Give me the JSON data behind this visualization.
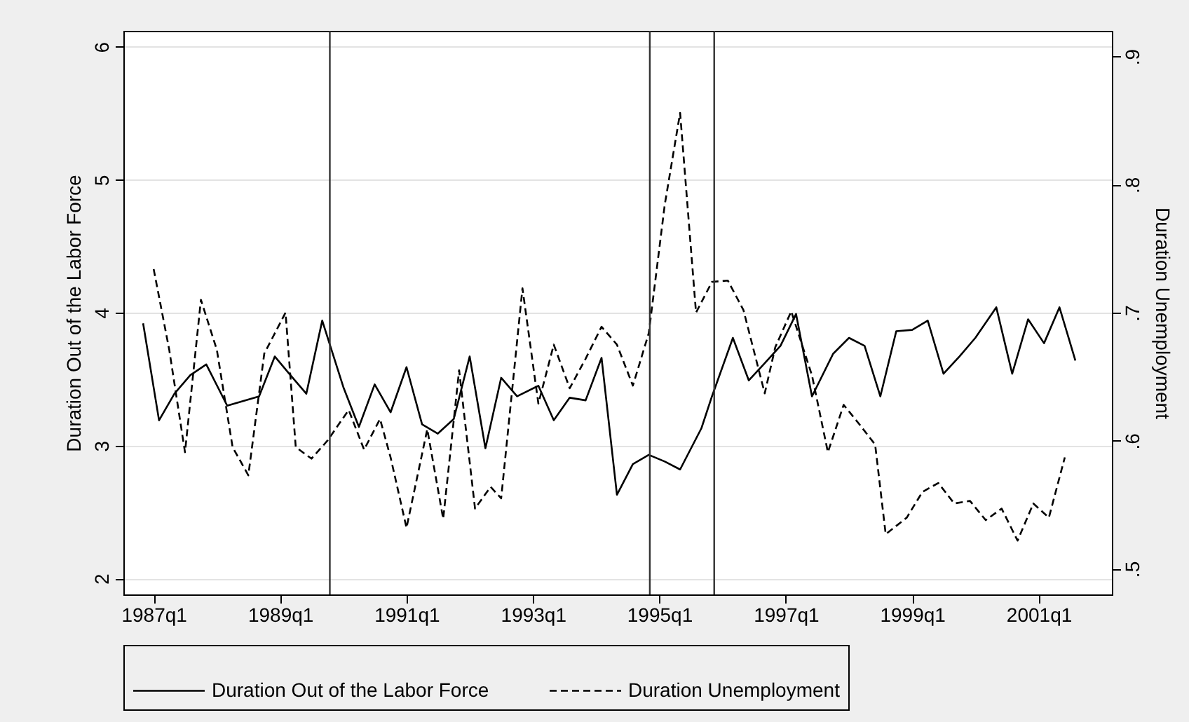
{
  "chart_data": {
    "type": "line",
    "xlabel": null,
    "ylabel": "Duration Out of the Labor Force",
    "y2label": "Duration Unemployment",
    "xlim": [
      "1986-07-10",
      "2002-02-28"
    ],
    "xticks": [
      {
        "value": "1987-01",
        "label": "1987q1"
      },
      {
        "value": "1989-01",
        "label": "1989q1"
      },
      {
        "value": "1991-01",
        "label": "1991q1"
      },
      {
        "value": "1993-01",
        "label": "1993q1"
      },
      {
        "value": "1995-01",
        "label": "1995q1"
      },
      {
        "value": "1997-01",
        "label": "1997q1"
      },
      {
        "value": "1999-01",
        "label": "1999q1"
      },
      {
        "value": "2001-01",
        "label": "2001q1"
      }
    ],
    "ylim": [
      1.88,
      6.12
    ],
    "yticks": [
      2,
      3,
      4,
      5,
      6
    ],
    "y2lim": [
      0.48,
      0.92
    ],
    "y2ticks": [
      {
        "value": 0.5,
        "label": ".5"
      },
      {
        "value": 0.6,
        "label": ".6"
      },
      {
        "value": 0.7,
        "label": ".7"
      },
      {
        "value": 0.8,
        "label": ".8"
      },
      {
        "value": 0.9,
        "label": ".9"
      }
    ],
    "grid": "y",
    "legend": "bottom",
    "marker": "none",
    "ref_lines": [
      {
        "axis": "x",
        "value": "1989-10-15"
      },
      {
        "axis": "x",
        "value": "1994-11-07"
      },
      {
        "axis": "x",
        "value": "1995-11-14"
      }
    ],
    "series": [
      {
        "name": "Duration Out of the Labor Force",
        "color": "#000000",
        "line_style": "solid",
        "x": [
          "1986-11",
          "1987-02",
          "1987-05",
          "1987-08",
          "1987-11",
          "1988-03",
          "1988-09",
          "1988-12",
          "1989-03",
          "1989-06",
          "1989-09",
          "1990-01",
          "1990-04",
          "1990-07",
          "1990-10",
          "1991-01",
          "1991-04",
          "1991-07",
          "1991-10",
          "1992-01",
          "1992-04",
          "1992-07",
          "1992-10",
          "1993-02",
          "1993-05",
          "1993-08",
          "1993-11",
          "1994-02",
          "1994-05",
          "1994-08",
          "1994-11",
          "1995-02",
          "1995-05",
          "1995-09",
          "1995-11",
          "1996-03",
          "1996-06",
          "1996-09",
          "1996-12",
          "1997-03",
          "1997-06",
          "1997-10",
          "1998-01",
          "1998-04",
          "1998-07",
          "1998-10",
          "1999-01",
          "1999-04",
          "1999-07",
          "1999-10",
          "2000-01",
          "2000-05",
          "2000-08",
          "2000-11",
          "2001-02",
          "2001-05",
          "2001-08"
        ],
        "values": [
          3.92,
          3.19,
          3.39,
          3.53,
          3.61,
          3.3,
          3.37,
          3.67,
          3.53,
          3.39,
          3.94,
          3.44,
          3.14,
          3.46,
          3.25,
          3.59,
          3.16,
          3.09,
          3.2,
          3.67,
          2.98,
          3.51,
          3.37,
          3.45,
          3.19,
          3.36,
          3.34,
          3.66,
          2.63,
          2.86,
          2.93,
          2.88,
          2.82,
          3.13,
          3.37,
          3.81,
          3.49,
          3.62,
          3.75,
          3.99,
          3.37,
          3.69,
          3.81,
          3.75,
          3.37,
          3.86,
          3.87,
          3.94,
          3.54,
          3.67,
          3.81,
          4.04,
          3.54,
          3.95,
          3.77,
          4.04,
          3.64
        ]
      },
      {
        "name": "Duration Unemployment",
        "color": "#000000",
        "line_style": "dashed",
        "axis": "y2",
        "x": [
          "1987-01",
          "1987-04",
          "1987-07",
          "1987-10",
          "1988-01",
          "1988-04",
          "1988-07",
          "1988-10",
          "1989-02",
          "1989-04",
          "1989-07",
          "1989-10",
          "1990-02",
          "1990-05",
          "1990-08",
          "1990-10",
          "1991-01",
          "1991-05",
          "1991-08",
          "1991-11",
          "1992-02",
          "1992-05",
          "1992-07",
          "1992-11",
          "1993-02",
          "1993-05",
          "1993-08",
          "1993-11",
          "1994-02",
          "1994-05",
          "1994-08",
          "1994-11",
          "1995-02",
          "1995-05",
          "1995-08",
          "1995-11",
          "1996-02",
          "1996-05",
          "1996-09",
          "1996-11",
          "1997-02",
          "1997-06",
          "1997-09",
          "1997-12",
          "1998-03",
          "1998-06",
          "1998-08",
          "1998-12",
          "1999-03",
          "1999-06",
          "1999-09",
          "1999-12",
          "2000-03",
          "2000-06",
          "2000-09",
          "2000-12",
          "2001-03",
          "2001-06"
        ],
        "values": [
          0.734,
          0.671,
          0.591,
          0.71,
          0.671,
          0.595,
          0.573,
          0.668,
          0.7,
          0.595,
          0.586,
          0.6,
          0.624,
          0.593,
          0.617,
          0.587,
          0.532,
          0.609,
          0.539,
          0.655,
          0.547,
          0.564,
          0.555,
          0.719,
          0.629,
          0.675,
          0.641,
          0.664,
          0.689,
          0.675,
          0.643,
          0.684,
          0.784,
          0.856,
          0.7,
          0.724,
          0.725,
          0.702,
          0.637,
          0.673,
          0.701,
          0.651,
          0.591,
          0.628,
          0.613,
          0.597,
          0.527,
          0.54,
          0.56,
          0.567,
          0.551,
          0.553,
          0.538,
          0.547,
          0.522,
          0.551,
          0.54,
          0.587
        ]
      }
    ]
  }
}
